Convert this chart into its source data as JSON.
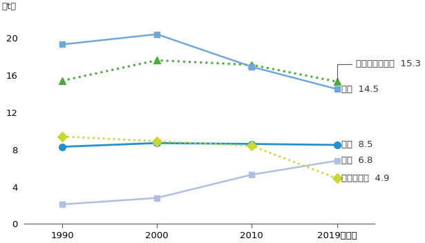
{
  "years": [
    1990,
    2000,
    2010,
    2019
  ],
  "series": {
    "usa": {
      "label": "米国  14.5",
      "values": [
        19.3,
        20.4,
        16.9,
        14.5
      ],
      "color": "#6fa8d8",
      "linestyle": "solid",
      "marker": "s",
      "markersize": 6,
      "linewidth": 1.8
    },
    "australia": {
      "label": "オーストラリア  15.3",
      "values": [
        15.4,
        17.6,
        17.1,
        15.3
      ],
      "color": "#4aaa3c",
      "linestyle": "dotted",
      "marker": "^",
      "markersize": 7,
      "linewidth": 2.2
    },
    "japan": {
      "label": "日本  8.5",
      "values": [
        8.3,
        8.7,
        8.6,
        8.5
      ],
      "color": "#2090d0",
      "linestyle": "solid",
      "marker": "o",
      "markersize": 7,
      "linewidth": 2.0
    },
    "china": {
      "label": "中国  6.8",
      "values": [
        2.1,
        2.8,
        5.3,
        6.8
      ],
      "color": "#b0bfe0",
      "linestyle": "solid",
      "marker": "s",
      "markersize": 6,
      "linewidth": 1.8
    },
    "denmark": {
      "label": "デンマーク  4.9",
      "values": [
        9.4,
        8.9,
        8.4,
        4.9
      ],
      "color": "#c8d830",
      "linestyle": "dotted",
      "marker": "D",
      "markersize": 7,
      "linewidth": 2.0
    }
  },
  "ylim": [
    0,
    22
  ],
  "yticks": [
    0,
    4,
    8,
    12,
    16,
    20
  ],
  "xticks": [
    1990,
    2000,
    2010,
    2019
  ],
  "background_color": "#ffffff"
}
